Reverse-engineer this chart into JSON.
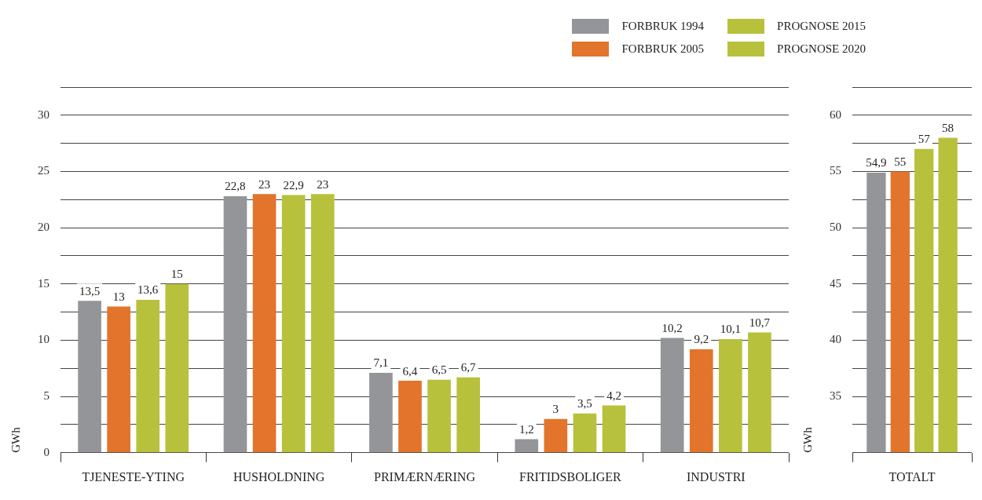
{
  "chart_data": [
    {
      "type": "bar",
      "ylabel": "GWh",
      "categories": [
        "TJENESTE-YTING",
        "HUSHOLDNING",
        "PRIMÆRNÆRING",
        "FRITIDSBOLIGER",
        "INDUSTRI"
      ],
      "series": [
        {
          "name": "FORBRUK 1994",
          "color": "#939598",
          "values": [
            13.5,
            22.8,
            7.1,
            1.2,
            10.2
          ],
          "value_labels": [
            "13,5",
            "22,8",
            "7,1",
            "1,2",
            "10,2"
          ]
        },
        {
          "name": "FORBRUK 2005",
          "color": "#e2752b",
          "values": [
            13,
            23,
            6.4,
            3,
            9.2
          ],
          "value_labels": [
            "13",
            "23",
            "6,4",
            "3",
            "9,2"
          ]
        },
        {
          "name": "PROGNOSE 2015",
          "color": "#b7c13c",
          "values": [
            13.6,
            22.9,
            6.5,
            3.5,
            10.1
          ],
          "value_labels": [
            "13,6",
            "22,9",
            "6,5",
            "3,5",
            "10,1"
          ]
        },
        {
          "name": "PROGNOSE 2020",
          "color": "#b7c13c",
          "values": [
            15,
            23,
            6.7,
            4.2,
            10.7
          ],
          "value_labels": [
            "15",
            "23",
            "6,7",
            "4,2",
            "10,7"
          ]
        }
      ],
      "ylim": [
        0,
        32.5
      ],
      "yticks": [
        0,
        {
          "value": 2.5,
          "label": null
        },
        5,
        {
          "value": 7.5,
          "label": null
        },
        10,
        {
          "value": 12.5,
          "label": null
        },
        15,
        {
          "value": 17.5,
          "label": null
        },
        20,
        {
          "value": 22.5,
          "label": null
        },
        25,
        {
          "value": 27.5,
          "label": null
        },
        30,
        {
          "value": 32.5,
          "label": null
        }
      ],
      "grid": "y",
      "legend": "top right"
    },
    {
      "type": "bar",
      "ylabel": "GWh",
      "categories": [
        "TOTALT"
      ],
      "series": [
        {
          "color": "#939598",
          "values": [
            54.9
          ],
          "value_labels": [
            "54,9"
          ]
        },
        {
          "color": "#e2752b",
          "values": [
            55
          ],
          "value_labels": [
            "55"
          ]
        },
        {
          "color": "#b7c13c",
          "values": [
            57
          ],
          "value_labels": [
            "57"
          ]
        },
        {
          "color": "#b7c13c",
          "values": [
            58
          ],
          "value_labels": [
            "58"
          ]
        }
      ],
      "ylim": [
        30,
        62.5
      ],
      "yticks": [
        {
          "value": 30,
          "label": null
        },
        {
          "value": 32.5,
          "label": null
        },
        35,
        {
          "value": 37.5,
          "label": null
        },
        40,
        {
          "value": 42.5,
          "label": null
        },
        45,
        {
          "value": 47.5,
          "label": null
        },
        50,
        {
          "value": 52.5,
          "label": null
        },
        55,
        {
          "value": 57.5,
          "label": null
        },
        60,
        {
          "value": 62.5,
          "label": null
        }
      ],
      "grid": "y"
    }
  ]
}
